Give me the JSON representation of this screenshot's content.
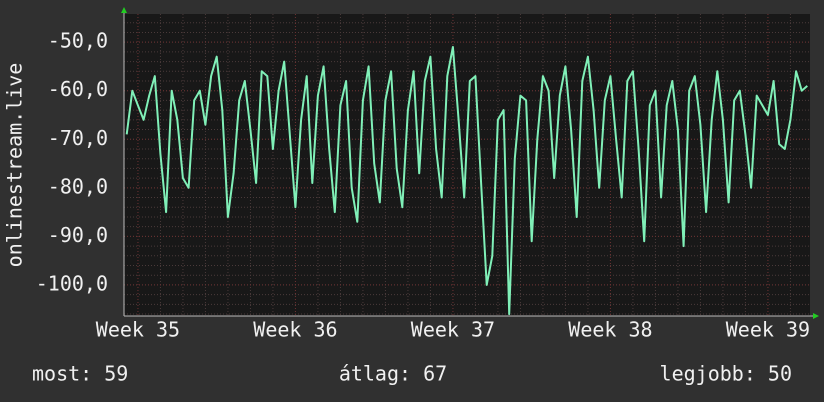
{
  "chart_data": {
    "type": "line",
    "ylabel": "onlinestream.live",
    "x": [
      -0.5,
      -0.25,
      0,
      0.25,
      0.5,
      0.75,
      1,
      1.25,
      1.5,
      1.75,
      2,
      2.25,
      2.5,
      2.75,
      3,
      3.25,
      3.5,
      3.75,
      4,
      4.25,
      4.5,
      4.75,
      5,
      5.25,
      5.5,
      5.75,
      6,
      6.25,
      6.5,
      6.75,
      7,
      7.25,
      7.5,
      7.75,
      8,
      8.25,
      8.5,
      8.75,
      9,
      9.25,
      9.5,
      9.75,
      10,
      10.25,
      10.5,
      10.75,
      11,
      11.25,
      11.5,
      11.75,
      12,
      12.25,
      12.5,
      12.75,
      13,
      13.25,
      13.5,
      13.75,
      14,
      14.25,
      14.5,
      14.75,
      15,
      15.25,
      15.5,
      15.75,
      16,
      16.25,
      16.5,
      16.75,
      17,
      17.25,
      17.5,
      17.75,
      18,
      18.25,
      18.5,
      18.75,
      19,
      19.25,
      19.5,
      19.75,
      20,
      20.25,
      20.5,
      20.75,
      21,
      21.25,
      21.5,
      21.75,
      22,
      22.25,
      22.5,
      22.75,
      23,
      23.25,
      23.5,
      23.75,
      24,
      24.25,
      24.5,
      24.75,
      25,
      25.25,
      25.5,
      25.75,
      26,
      26.25,
      26.5,
      26.75,
      27,
      27.25,
      27.5,
      27.75,
      28,
      28.25,
      28.5,
      28.75,
      29,
      29.25,
      29.5,
      29.75
    ],
    "series": [
      {
        "color": "#80f0b8",
        "values": [
          -69,
          -60,
          -63,
          -66,
          -61,
          -57,
          -73,
          -85,
          -60,
          -66,
          -78,
          -80,
          -62,
          -60,
          -67,
          -57,
          -53,
          -64,
          -86,
          -77,
          -62,
          -58,
          -68,
          -79,
          -56,
          -57,
          -72,
          -60,
          -54,
          -69,
          -84,
          -66,
          -57,
          -79,
          -61,
          -55,
          -72,
          -85,
          -63,
          -58,
          -80,
          -87,
          -62,
          -55,
          -75,
          -83,
          -62,
          -56,
          -76,
          -84,
          -64,
          -56,
          -77,
          -58,
          -53,
          -72,
          -82,
          -57,
          -51,
          -66,
          -82,
          -58,
          -57,
          -79,
          -100,
          -94,
          -66,
          -64,
          -106,
          -74,
          -61,
          -62,
          -91,
          -70,
          -57,
          -60,
          -78,
          -61,
          -55,
          -68,
          -86,
          -58,
          -53,
          -64,
          -80,
          -62,
          -57,
          -70,
          -82,
          -58,
          -56,
          -72,
          -91,
          -63,
          -60,
          -82,
          -63,
          -58,
          -68,
          -92,
          -60,
          -57,
          -67,
          -85,
          -66,
          -56,
          -66,
          -83,
          -62,
          -60,
          -69,
          -80,
          -61,
          -63,
          -65,
          -58,
          -71,
          -72,
          -66,
          -56,
          -60,
          -59
        ]
      }
    ],
    "xlim": [
      -0.62,
      29.87
    ],
    "xticks": [
      {
        "value": 0,
        "label": "Week 35"
      },
      {
        "value": 7,
        "label": "Week 36"
      },
      {
        "value": 14,
        "label": "Week 37"
      },
      {
        "value": 21,
        "label": "Week 38"
      },
      {
        "value": 28,
        "label": "Week 39"
      }
    ],
    "ylim": [
      -106.4,
      -44.2
    ],
    "yticks": [
      {
        "value": -100,
        "label": "-100,0"
      },
      {
        "value": -90,
        "label": "-90,0"
      },
      {
        "value": -80,
        "label": "-80,0"
      },
      {
        "value": -70,
        "label": "-70,0"
      },
      {
        "value": -60,
        "label": "-60,0"
      },
      {
        "value": -50,
        "label": "-50,0"
      }
    ],
    "grid": true
  },
  "footer": [
    "most: 59",
    "átlag: 67",
    "legjobb: 50"
  ]
}
